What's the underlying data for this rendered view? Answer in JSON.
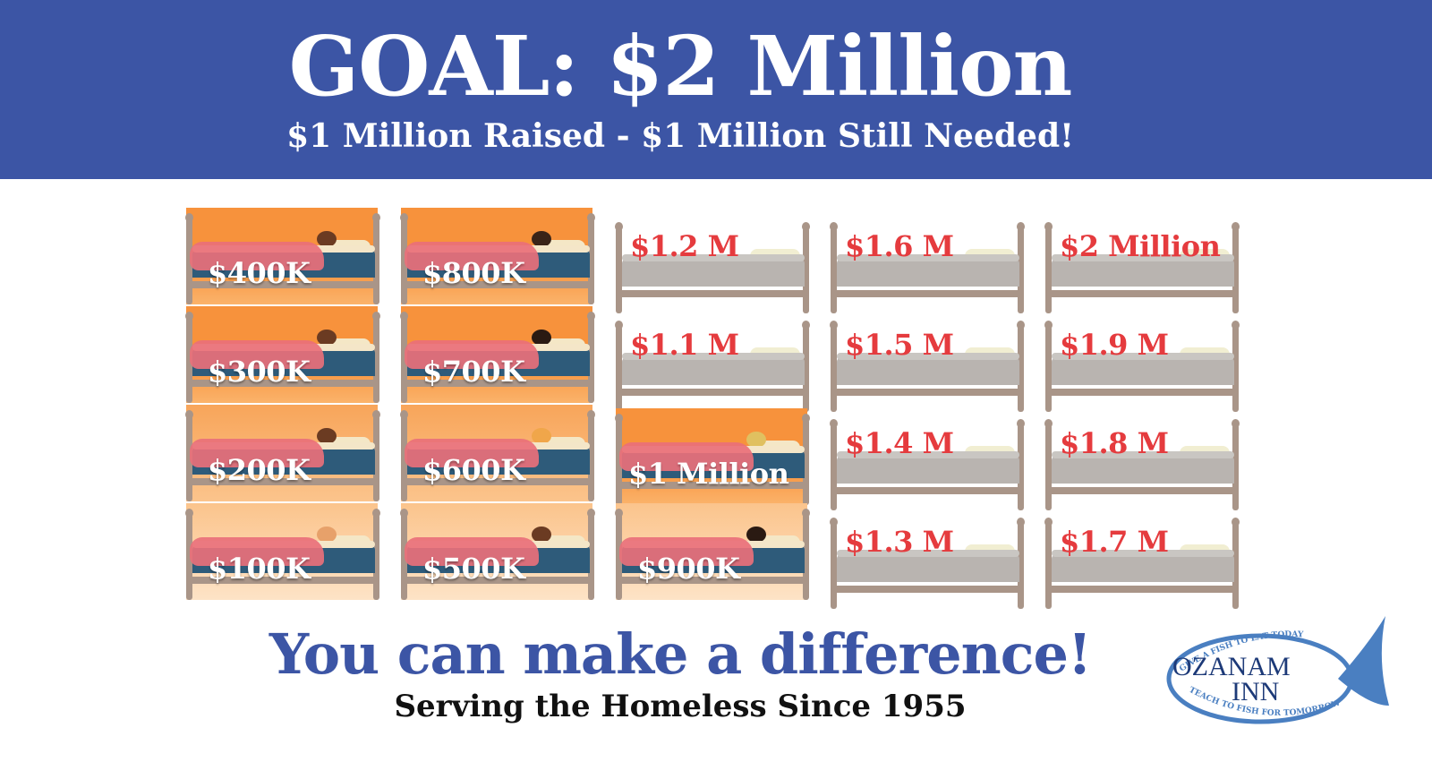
{
  "banner": {
    "goal": "GOAL: $2 Million",
    "subtitle": "$1 Million Raised - $1 Million Still Needed!"
  },
  "beds": [
    {
      "label": "$400K",
      "filled": true
    },
    {
      "label": "$300K",
      "filled": true
    },
    {
      "label": "$200K",
      "filled": true
    },
    {
      "label": "$100K",
      "filled": true
    },
    {
      "label": "$800K",
      "filled": true
    },
    {
      "label": "$700K",
      "filled": true
    },
    {
      "label": "$600K",
      "filled": true
    },
    {
      "label": "$500K",
      "filled": true
    },
    {
      "label": "$1.2 M",
      "filled": false
    },
    {
      "label": "$1.1 M",
      "filled": false
    },
    {
      "label": "$1 Million",
      "filled": true
    },
    {
      "label": "$900K",
      "filled": true
    },
    {
      "label": "$1.6 M",
      "filled": false
    },
    {
      "label": "$1.5 M",
      "filled": false
    },
    {
      "label": "$1.4 M",
      "filled": false
    },
    {
      "label": "$1.3 M",
      "filled": false
    },
    {
      "label": "$2 Million",
      "filled": false
    },
    {
      "label": "$1.9 M",
      "filled": false
    },
    {
      "label": "$1.8 M",
      "filled": false
    },
    {
      "label": "$1.7 M",
      "filled": false
    }
  ],
  "footer": {
    "cta": "You can make a difference!",
    "since": "Serving the Homeless Since 1955"
  },
  "logo": {
    "name_line1": "OZANAM",
    "name_line2": "INN",
    "tagline_top": "GIVE A FISH TO EAT TODAY",
    "tagline_bottom": "TEACH TO FISH FOR TOMORROW"
  },
  "colors": {
    "banner": "#3c55a5",
    "bed_fill": "#f7923c",
    "empty_label": "#e53b3e"
  }
}
